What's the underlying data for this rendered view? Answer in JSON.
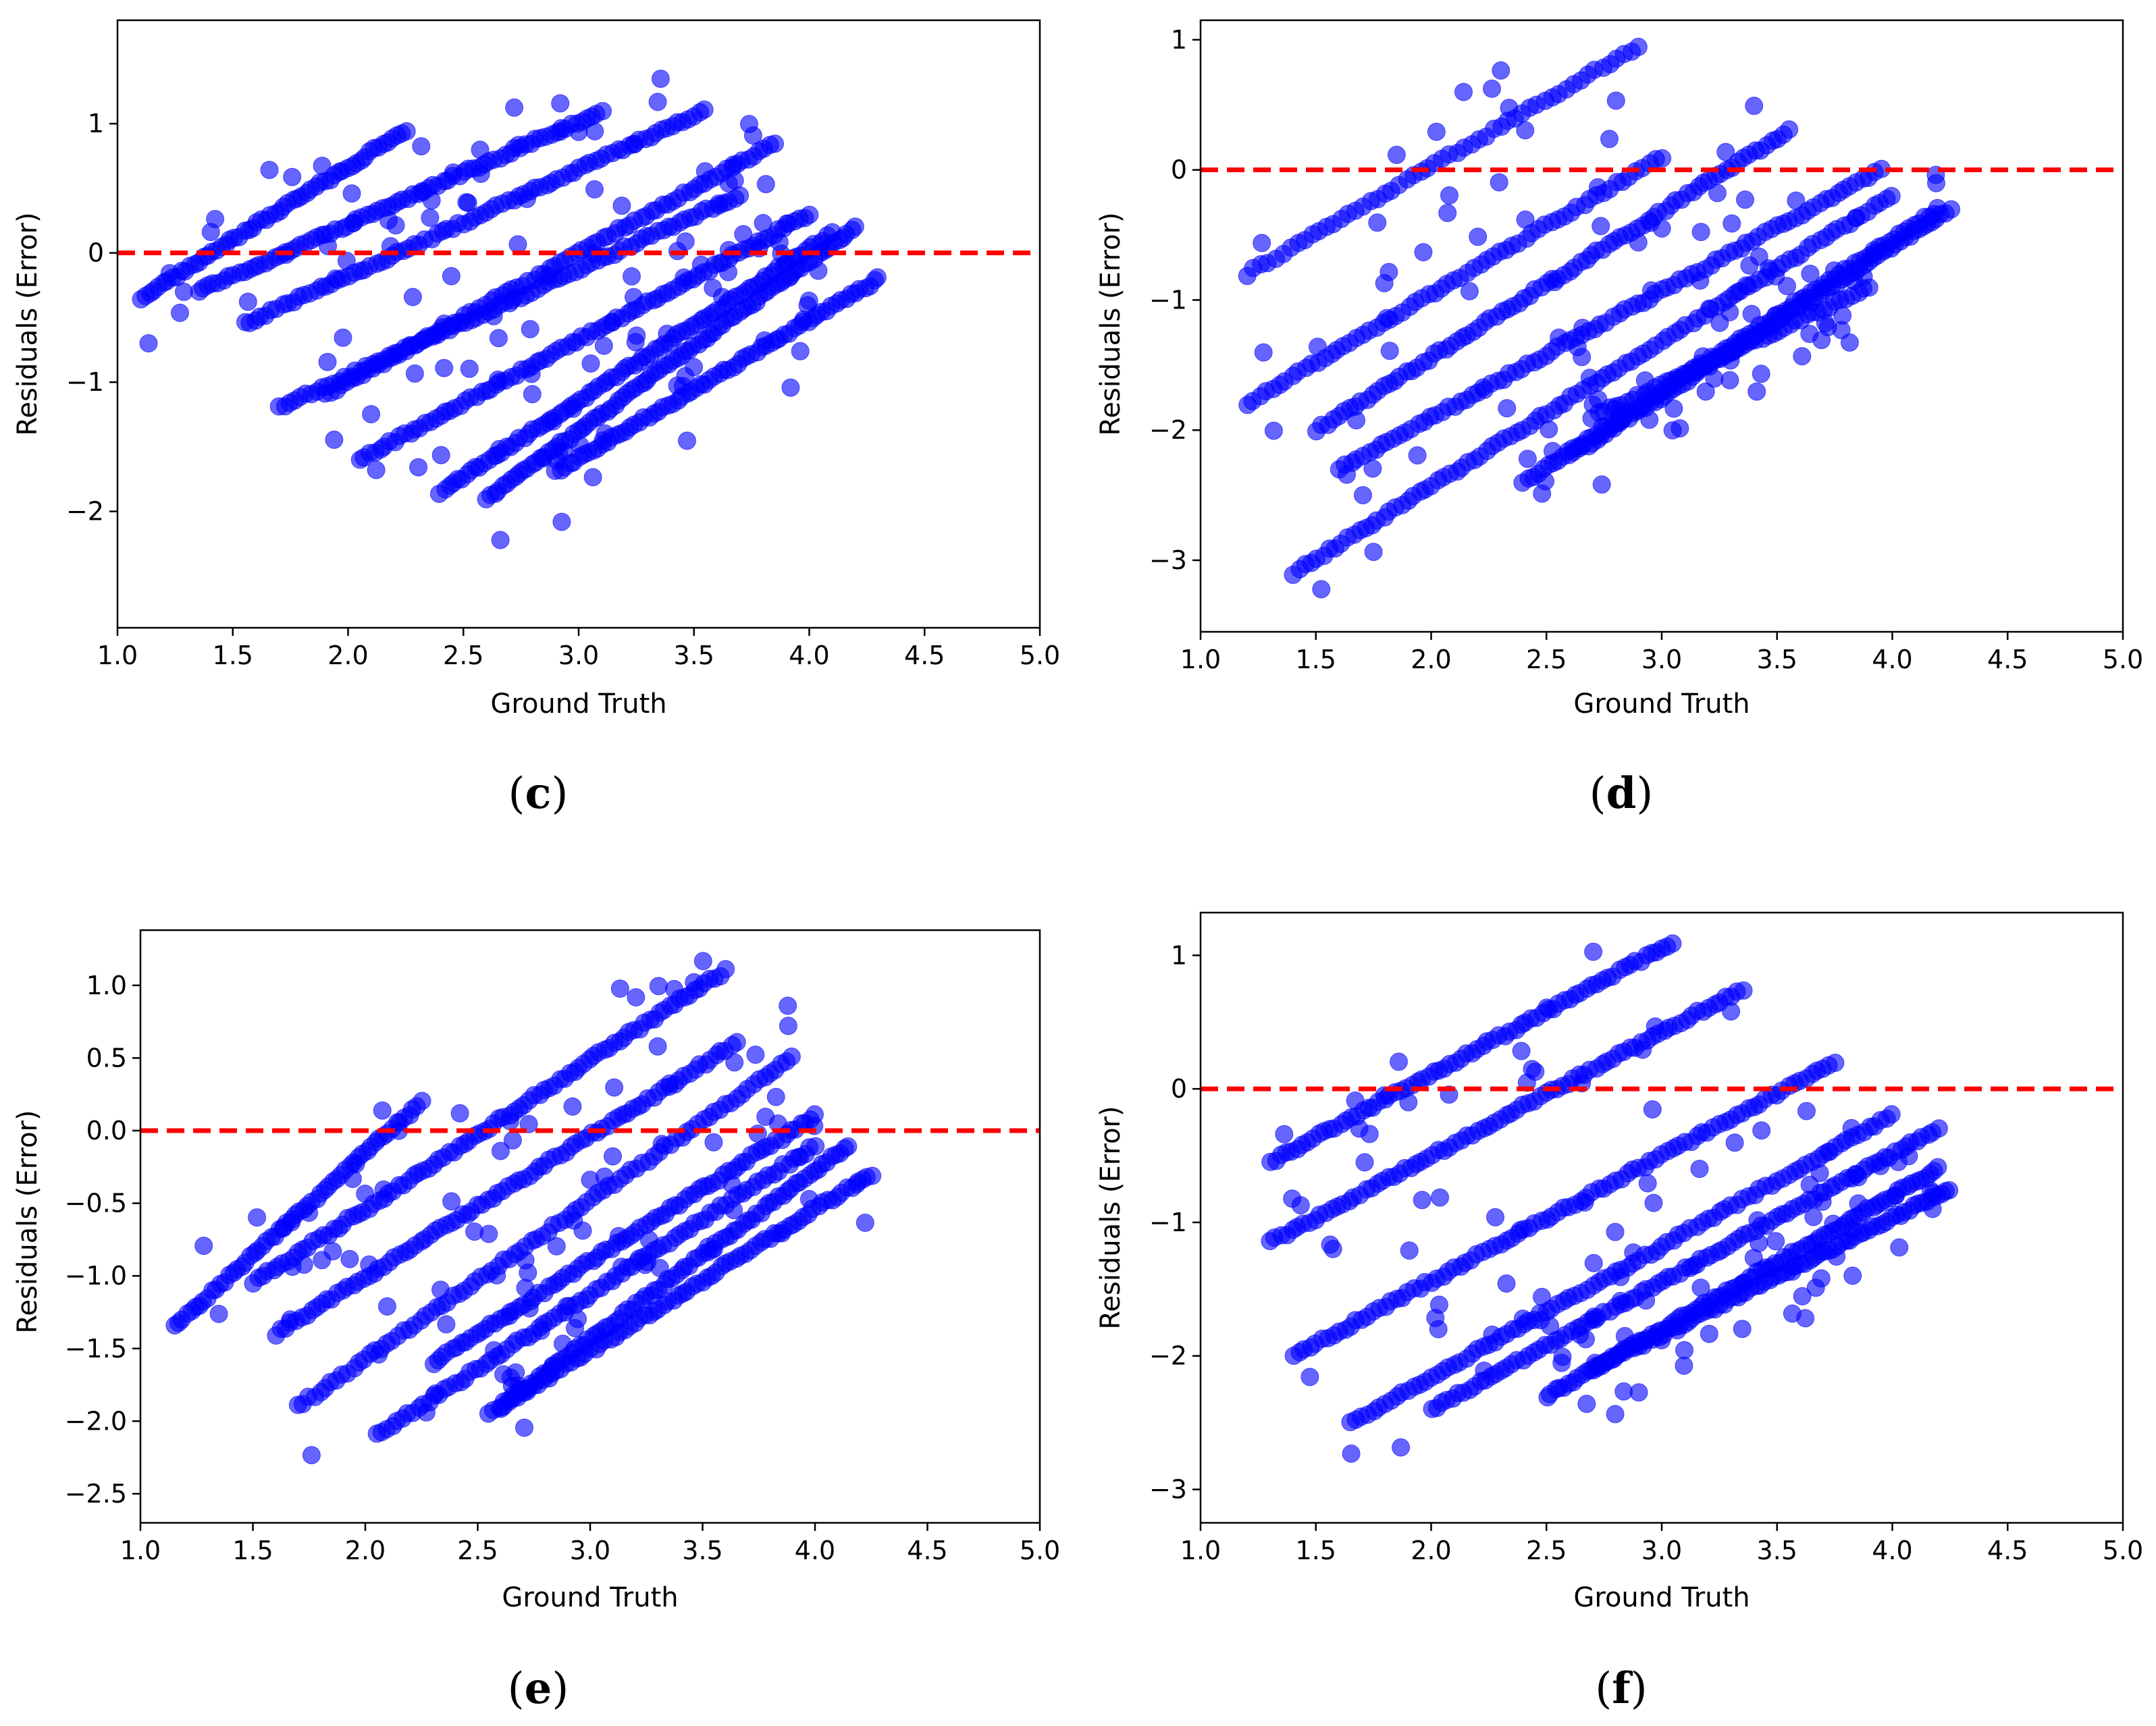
{
  "point_color": "#0000ff",
  "zero_line_color": "#ff0000",
  "chart_data": [
    {
      "panel": "c",
      "type": "scatter",
      "xlabel": "Ground Truth",
      "ylabel": "Residuals (Error)",
      "xlim": [
        1.0,
        5.0
      ],
      "ylim": [
        -2.9,
        1.8
      ],
      "xticks": [
        "1.0",
        "1.5",
        "2.0",
        "2.5",
        "3.0",
        "3.5",
        "4.0",
        "4.5",
        "5.0"
      ],
      "yticks": [
        {
          "value": -2,
          "label": "−2"
        },
        {
          "value": -1,
          "label": "−1"
        },
        {
          "value": 0,
          "label": "0"
        },
        {
          "value": 1,
          "label": "1"
        }
      ],
      "reference_line": 0,
      "bands": [
        {
          "x_start": 1.1,
          "x_end": 2.25,
          "y_start": -0.35,
          "y_end": 0.95,
          "count": 60
        },
        {
          "x_start": 1.35,
          "x_end": 3.1,
          "y_start": -0.3,
          "y_end": 1.1,
          "count": 80
        },
        {
          "x_start": 1.55,
          "x_end": 3.55,
          "y_start": -0.55,
          "y_end": 1.1,
          "count": 85
        },
        {
          "x_start": 1.7,
          "x_end": 3.7,
          "y_start": -1.2,
          "y_end": 0.45,
          "count": 85
        },
        {
          "x_start": 1.9,
          "x_end": 3.85,
          "y_start": -1.1,
          "y_end": 0.85,
          "count": 85
        },
        {
          "x_start": 2.05,
          "x_end": 4.0,
          "y_start": -1.6,
          "y_end": 0.3,
          "count": 90
        },
        {
          "x_start": 2.4,
          "x_end": 4.1,
          "y_start": -1.85,
          "y_end": 0.15,
          "count": 90
        },
        {
          "x_start": 2.6,
          "x_end": 4.2,
          "y_start": -1.9,
          "y_end": 0.2,
          "count": 90
        },
        {
          "x_start": 2.9,
          "x_end": 4.3,
          "y_start": -1.7,
          "y_end": -0.2,
          "count": 70
        }
      ],
      "scatter_count": 120
    },
    {
      "panel": "d",
      "type": "scatter",
      "xlabel": "Ground Truth",
      "ylabel": "Residuals (Error)",
      "xlim": [
        1.0,
        5.0
      ],
      "ylim": [
        -3.55,
        1.15
      ],
      "xticks": [
        "1.0",
        "1.5",
        "2.0",
        "2.5",
        "3.0",
        "3.5",
        "4.0",
        "4.5",
        "5.0"
      ],
      "yticks": [
        {
          "value": -3,
          "label": "−3"
        },
        {
          "value": -2,
          "label": "−2"
        },
        {
          "value": -1,
          "label": "−1"
        },
        {
          "value": 0,
          "label": "0"
        },
        {
          "value": 1,
          "label": "1"
        }
      ],
      "reference_line": 0,
      "bands": [
        {
          "x_start": 1.2,
          "x_end": 2.9,
          "y_start": -0.8,
          "y_end": 0.95,
          "count": 55
        },
        {
          "x_start": 1.2,
          "x_end": 3.0,
          "y_start": -1.8,
          "y_end": 0.1,
          "count": 65
        },
        {
          "x_start": 1.5,
          "x_end": 3.55,
          "y_start": -2.0,
          "y_end": 0.3,
          "count": 85
        },
        {
          "x_start": 1.6,
          "x_end": 3.95,
          "y_start": -2.3,
          "y_end": 0.0,
          "count": 90
        },
        {
          "x_start": 1.4,
          "x_end": 4.0,
          "y_start": -3.1,
          "y_end": -0.2,
          "count": 100
        },
        {
          "x_start": 2.4,
          "x_end": 4.2,
          "y_start": -2.4,
          "y_end": -0.3,
          "count": 85
        },
        {
          "x_start": 2.6,
          "x_end": 4.25,
          "y_start": -2.2,
          "y_end": -0.3,
          "count": 85
        },
        {
          "x_start": 2.7,
          "x_end": 3.9,
          "y_start": -1.9,
          "y_end": -0.9,
          "count": 50
        }
      ],
      "scatter_count": 110
    },
    {
      "panel": "e",
      "type": "scatter",
      "xlabel": "Ground Truth",
      "ylabel": "Residuals (Error)",
      "xlim": [
        1.0,
        5.0
      ],
      "ylim": [
        -2.7,
        1.38
      ],
      "xticks": [
        "1.0",
        "1.5",
        "2.0",
        "2.5",
        "3.0",
        "3.5",
        "4.0",
        "4.5",
        "5.0"
      ],
      "yticks": [
        {
          "value": -2.5,
          "label": "−2.5"
        },
        {
          "value": -2.0,
          "label": "−2.0"
        },
        {
          "value": -1.5,
          "label": "−1.5"
        },
        {
          "value": -1.0,
          "label": "−1.0"
        },
        {
          "value": -0.5,
          "label": "−0.5"
        },
        {
          "value": 0.0,
          "label": "0.0"
        },
        {
          "value": 0.5,
          "label": "0.5"
        },
        {
          "value": 1.0,
          "label": "1.0"
        }
      ],
      "reference_line": 0,
      "bands": [
        {
          "x_start": 1.15,
          "x_end": 2.25,
          "y_start": -1.35,
          "y_end": 0.2,
          "count": 60
        },
        {
          "x_start": 1.5,
          "x_end": 3.6,
          "y_start": -1.05,
          "y_end": 1.1,
          "count": 95
        },
        {
          "x_start": 1.6,
          "x_end": 3.65,
          "y_start": -1.4,
          "y_end": 0.6,
          "count": 90
        },
        {
          "x_start": 1.7,
          "x_end": 3.9,
          "y_start": -1.9,
          "y_end": 0.5,
          "count": 90
        },
        {
          "x_start": 2.05,
          "x_end": 4.0,
          "y_start": -2.1,
          "y_end": -0.1,
          "count": 85
        },
        {
          "x_start": 2.3,
          "x_end": 4.0,
          "y_start": -1.6,
          "y_end": 0.1,
          "count": 80
        },
        {
          "x_start": 2.6,
          "x_end": 4.15,
          "y_start": -1.9,
          "y_end": -0.1,
          "count": 80
        },
        {
          "x_start": 2.55,
          "x_end": 4.25,
          "y_start": -1.95,
          "y_end": -0.3,
          "count": 80
        }
      ],
      "scatter_count": 100
    },
    {
      "panel": "f",
      "type": "scatter",
      "xlabel": "Ground Truth",
      "ylabel": "Residuals (Error)",
      "xlim": [
        1.0,
        5.0
      ],
      "ylim": [
        -3.25,
        1.32
      ],
      "xticks": [
        "1.0",
        "1.5",
        "2.0",
        "2.5",
        "3.0",
        "3.5",
        "4.0",
        "4.5",
        "5.0"
      ],
      "yticks": [
        {
          "value": -3,
          "label": "−3"
        },
        {
          "value": -2,
          "label": "−2"
        },
        {
          "value": -1,
          "label": "−1"
        },
        {
          "value": 0,
          "label": "0"
        },
        {
          "value": 1,
          "label": "1"
        }
      ],
      "reference_line": 0,
      "bands": [
        {
          "x_start": 1.3,
          "x_end": 3.05,
          "y_start": -0.55,
          "y_end": 1.1,
          "count": 75
        },
        {
          "x_start": 1.3,
          "x_end": 3.35,
          "y_start": -1.15,
          "y_end": 0.75,
          "count": 85
        },
        {
          "x_start": 1.4,
          "x_end": 3.75,
          "y_start": -2.0,
          "y_end": 0.2,
          "count": 95
        },
        {
          "x_start": 1.65,
          "x_end": 4.0,
          "y_start": -2.5,
          "y_end": -0.2,
          "count": 95
        },
        {
          "x_start": 2.0,
          "x_end": 4.2,
          "y_start": -2.4,
          "y_end": -0.3,
          "count": 95
        },
        {
          "x_start": 2.5,
          "x_end": 4.2,
          "y_start": -2.3,
          "y_end": -0.6,
          "count": 90
        },
        {
          "x_start": 2.7,
          "x_end": 4.25,
          "y_start": -2.1,
          "y_end": -0.75,
          "count": 80
        }
      ],
      "scatter_count": 110
    }
  ]
}
